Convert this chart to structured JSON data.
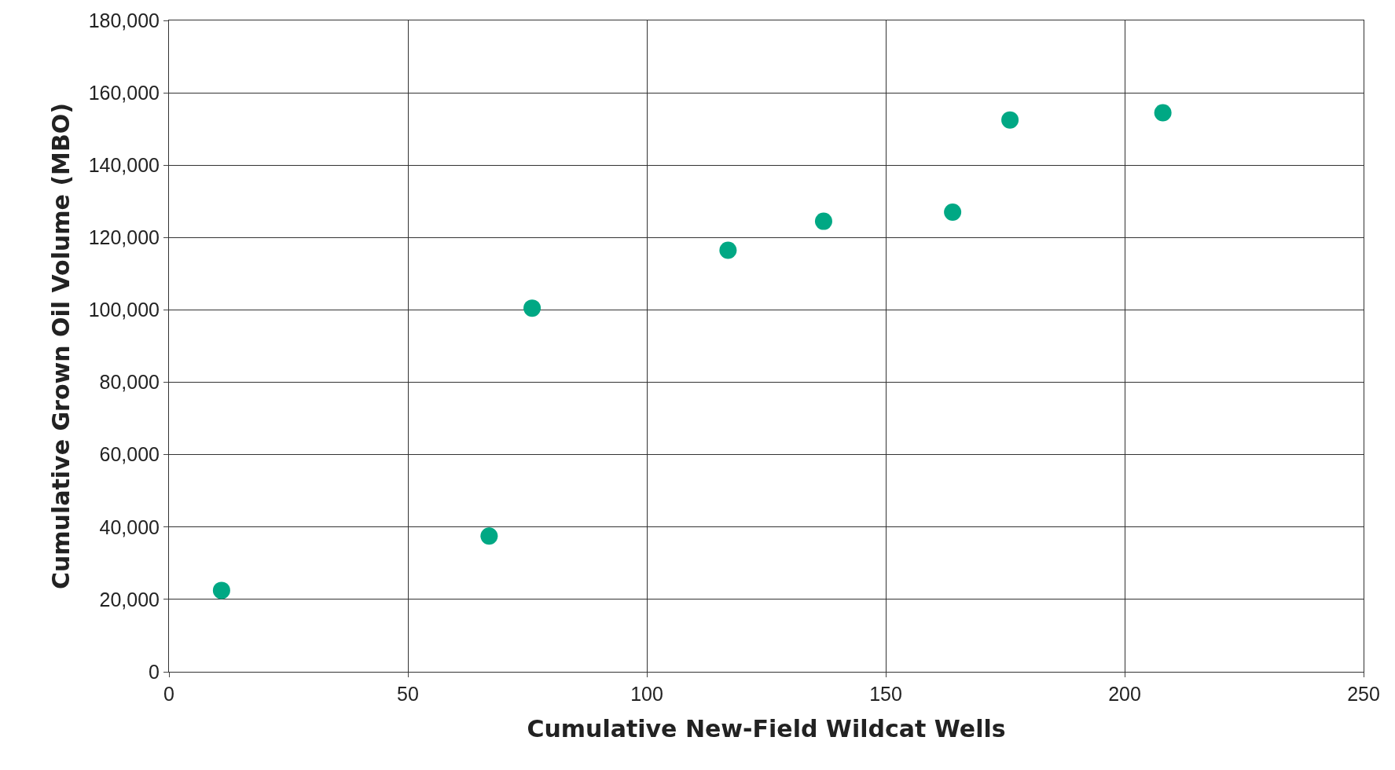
{
  "chart_data": {
    "type": "scatter",
    "xlabel": "Cumulative New-Field Wildcat Wells",
    "ylabel": "Cumulative Grown Oil Volume (MBO)",
    "x": [
      11,
      67,
      76,
      117,
      137,
      164,
      176,
      208
    ],
    "series": [
      {
        "color": "#00a884",
        "values": [
          22500,
          37500,
          100500,
          116500,
          124500,
          127000,
          152500,
          154500
        ]
      }
    ],
    "xlim": [
      0,
      250
    ],
    "xticks": [
      0,
      50,
      100,
      150,
      200,
      250
    ],
    "ylim": [
      0,
      180000
    ],
    "yticks": [
      {
        "value": 0,
        "label": "0"
      },
      {
        "value": 20000,
        "label": "20,000"
      },
      {
        "value": 40000,
        "label": "40,000"
      },
      {
        "value": 60000,
        "label": "60,000"
      },
      {
        "value": 80000,
        "label": "80,000"
      },
      {
        "value": 100000,
        "label": "100,000"
      },
      {
        "value": 120000,
        "label": "120,000"
      },
      {
        "value": 140000,
        "label": "140,000"
      },
      {
        "value": 160000,
        "label": "160,000"
      },
      {
        "value": 180000,
        "label": "180,000"
      }
    ],
    "grid": true,
    "marker": "circle"
  }
}
